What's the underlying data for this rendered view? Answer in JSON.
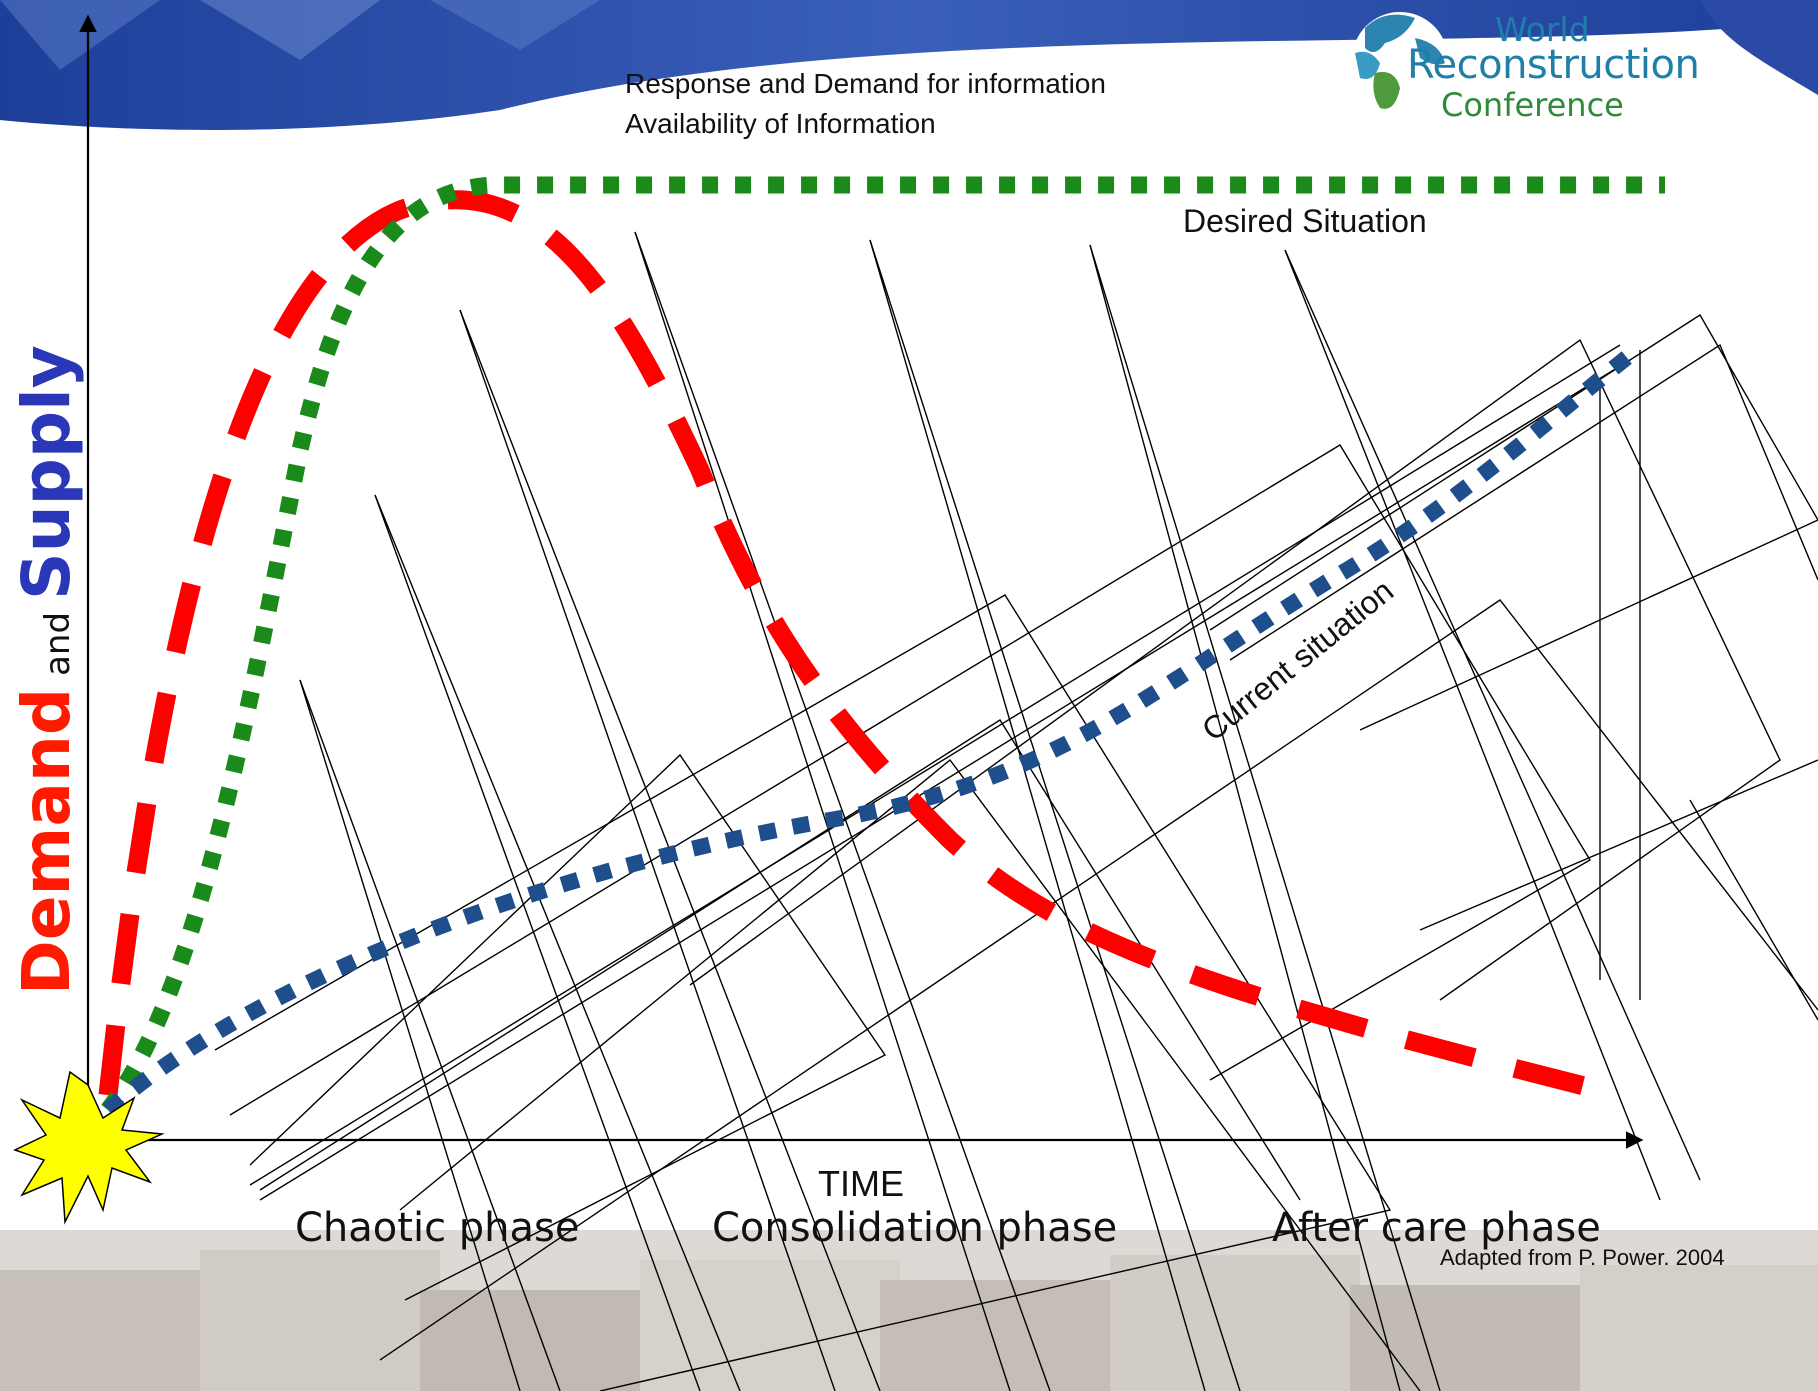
{
  "legend": {
    "line1": "Response and Demand for information",
    "line2": "Availability of Information"
  },
  "logo": {
    "line1": "World",
    "line2": "Reconstruction",
    "line3": "Conference"
  },
  "axes": {
    "y_label_demand": "Demand",
    "y_label_and": "and",
    "y_label_supply": "Supply",
    "x_label": "TIME"
  },
  "phases": {
    "chaotic": "Chaotic phase",
    "consolidation": "Consolidation phase",
    "aftercare": "After care phase"
  },
  "annotations": {
    "desired": "Desired Situation",
    "current": "Current situation",
    "source": "Adapted from P. Power. 2004"
  },
  "colors": {
    "demand": "#ff0000",
    "availability_desired": "#1a8a1a",
    "availability_current": "#1f4e8c",
    "starburst": "#ffff00",
    "banner": "#1d3f99",
    "demand_label": "#ff1a00",
    "supply_label": "#2a37b8"
  },
  "icons": {
    "starburst": "explosion-starburst-icon",
    "globe": "globe-icon"
  }
}
